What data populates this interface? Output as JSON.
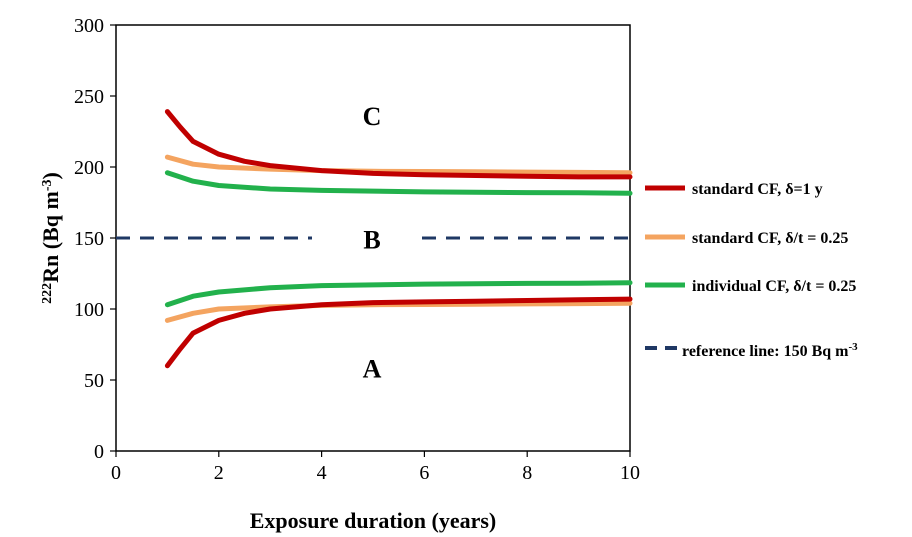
{
  "chart_data": {
    "type": "line",
    "xlabel": "Exposure duration (years)",
    "ylabel_main": "Rn (Bq m",
    "ylabel_sup_pre": "222",
    "ylabel_sup_post": "-3",
    "ylabel_close": ")",
    "xlim": [
      0,
      10
    ],
    "ylim": [
      0,
      300
    ],
    "xticks": [
      0,
      2,
      4,
      6,
      8,
      10
    ],
    "yticks": [
      0,
      50,
      100,
      150,
      200,
      250,
      300
    ],
    "grid": false,
    "legend_position": "right",
    "region_labels": [
      {
        "label": "C",
        "x": 5,
        "y": 236
      },
      {
        "label": "B",
        "x": 5,
        "y": 149
      },
      {
        "label": "A",
        "x": 5,
        "y": 58
      }
    ],
    "series": [
      {
        "name": "standard CF, δ=1 y",
        "color": "#c00000",
        "upper": {
          "x": [
            1,
            1.25,
            1.5,
            2,
            2.5,
            3,
            4,
            5,
            6,
            7,
            8,
            9,
            10
          ],
          "y": [
            239,
            228,
            218,
            209,
            204,
            201,
            197.5,
            195.5,
            194.5,
            194,
            193.5,
            193,
            193
          ]
        },
        "lower": {
          "x": [
            1,
            1.25,
            1.5,
            2,
            2.5,
            3,
            4,
            5,
            6,
            7,
            8,
            9,
            10
          ],
          "y": [
            60,
            72,
            83,
            92,
            97,
            100,
            103,
            104.5,
            105,
            105.5,
            106,
            106.5,
            107
          ]
        }
      },
      {
        "name": "standard CF, δ/t = 0.25",
        "color": "#f4a460",
        "upper": {
          "x": [
            1,
            1.5,
            2,
            3,
            4,
            5,
            6,
            7,
            8,
            9,
            10
          ],
          "y": [
            207,
            202,
            200,
            198.5,
            197.5,
            197,
            196.8,
            196.6,
            196.4,
            196.2,
            196
          ]
        },
        "lower": {
          "x": [
            1,
            1.5,
            2,
            3,
            4,
            5,
            6,
            7,
            8,
            9,
            10
          ],
          "y": [
            92,
            97,
            100,
            101.5,
            102.5,
            103,
            103.2,
            103.4,
            103.6,
            103.8,
            104
          ]
        }
      },
      {
        "name": "individual CF, δ/t = 0.25",
        "color": "#22b14c",
        "upper": {
          "x": [
            1,
            1.5,
            2,
            3,
            4,
            5,
            6,
            7,
            8,
            9,
            10
          ],
          "y": [
            196,
            190,
            187,
            184.5,
            183.5,
            183,
            182.5,
            182.2,
            182,
            181.8,
            181.5
          ]
        },
        "lower": {
          "x": [
            1,
            1.5,
            2,
            3,
            4,
            5,
            6,
            7,
            8,
            9,
            10
          ],
          "y": [
            103,
            109,
            112,
            115,
            116.5,
            117,
            117.5,
            117.8,
            118,
            118.2,
            118.5
          ]
        }
      },
      {
        "name": "reference line: 150 Bq m",
        "name_sup": "-3",
        "color": "#1f3864",
        "dashed": true,
        "value": 150
      }
    ]
  }
}
